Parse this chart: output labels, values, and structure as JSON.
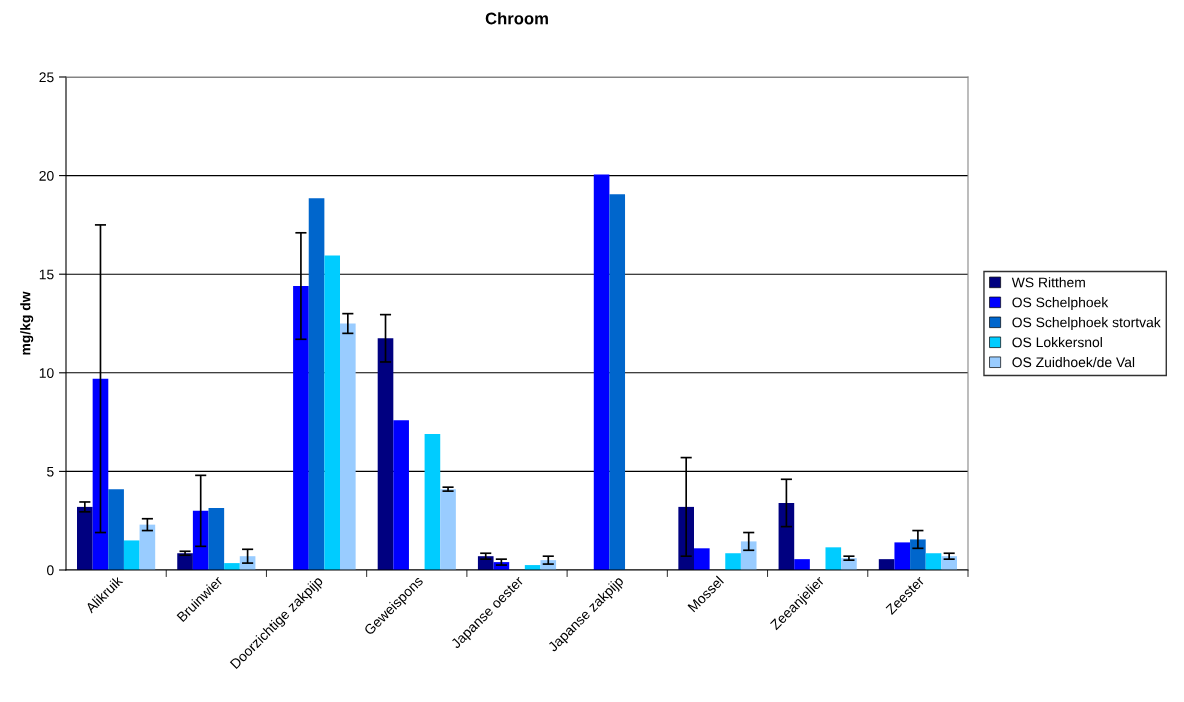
{
  "chart_data": {
    "type": "bar",
    "title": "Chroom",
    "ylabel": "mg/kg dw",
    "categories": [
      "Alikruik",
      "Bruinwier",
      "Doorzichtige zakpijp",
      "Geweispons",
      "Japanse oester",
      "Japanse zakpijp",
      "Mossel",
      "Zeeanjelier",
      "Zeester"
    ],
    "series": [
      {
        "name": "WS Ritthem",
        "color": "#000080",
        "values": [
          3.2,
          0.85,
          null,
          11.75,
          0.7,
          null,
          3.2,
          3.4,
          0.55
        ],
        "errors": [
          0.25,
          0.1,
          null,
          1.2,
          0.15,
          null,
          2.5,
          1.2,
          null
        ]
      },
      {
        "name": "OS Schelphoek",
        "color": "#0000ff",
        "values": [
          9.7,
          3.0,
          14.4,
          7.6,
          0.4,
          20.05,
          1.1,
          0.55,
          1.4
        ],
        "errors": [
          7.8,
          1.8,
          2.7,
          null,
          0.15,
          null,
          null,
          null,
          null
        ]
      },
      {
        "name": "OS Schelphoek stortvak",
        "color": "#0066cc",
        "values": [
          4.1,
          3.15,
          18.85,
          null,
          null,
          19.05,
          null,
          null,
          1.55
        ],
        "errors": [
          null,
          null,
          null,
          null,
          null,
          null,
          null,
          null,
          0.45
        ]
      },
      {
        "name": "OS Lokkersnol",
        "color": "#00ccff",
        "values": [
          1.5,
          0.35,
          15.95,
          6.9,
          0.25,
          null,
          0.85,
          1.15,
          0.85
        ]
      },
      {
        "name": "OS Zuidhoek/de Val",
        "color": "#99ccff",
        "values": [
          2.3,
          0.7,
          12.5,
          4.1,
          0.5,
          null,
          1.45,
          0.6,
          0.7
        ],
        "errors": [
          0.3,
          0.35,
          0.5,
          0.1,
          0.2,
          null,
          0.45,
          0.1,
          0.15
        ]
      }
    ],
    "ylim": [
      0,
      25
    ],
    "yticks": [
      0,
      5,
      10,
      15,
      20,
      25
    ],
    "grid": "y",
    "legend": "right"
  }
}
